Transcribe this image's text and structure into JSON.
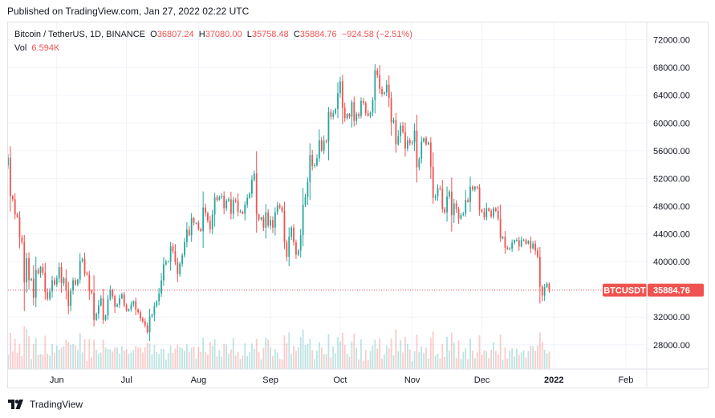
{
  "header": {
    "published": "Published on TradingView.com, Jan 27, 2022 02:22 UTC"
  },
  "legend": {
    "symbol": "Bitcoin / TetherUS, 1D, BINANCE",
    "open_label": "O",
    "open": "36807.24",
    "high_label": "H",
    "high": "37080.00",
    "low_label": "L",
    "low": "35758.48",
    "close_label": "C",
    "close": "35884.76",
    "change": "−924.58 (−2.51%)",
    "vol_label": "Vol",
    "vol": "6.594K"
  },
  "branding": {
    "name": "TradingView"
  },
  "colors": {
    "up": "#26a69a",
    "down": "#ef5350",
    "grid": "#f0f3fa",
    "border": "#e0e3eb"
  },
  "chart_data": {
    "type": "candlestick",
    "symbol": "BTCUSDT",
    "interval": "1D",
    "last_price": 35884.76,
    "last_price_label": "35884.76",
    "symbol_tag": "BTCUSDT",
    "ylim": [
      24500,
      74500
    ],
    "y_ticks": [
      28000,
      32000,
      36000,
      40000,
      44000,
      48000,
      52000,
      56000,
      60000,
      64000,
      68000,
      72000
    ],
    "y_tick_labels": [
      "28000.00",
      "32000.00",
      "36000.00",
      "40000.00",
      "44000.00",
      "48000.00",
      "52000.00",
      "56000.00",
      "60000.00",
      "64000.00",
      "68000.00",
      "72000.00"
    ],
    "x_range": [
      "2021-05-11",
      "2022-02-10"
    ],
    "x_ticks": [
      {
        "date": "2021-06-01",
        "label": "Jun"
      },
      {
        "date": "2021-07-01",
        "label": "Jul"
      },
      {
        "date": "2021-08-01",
        "label": "Aug"
      },
      {
        "date": "2021-09-01",
        "label": "Sep"
      },
      {
        "date": "2021-10-01",
        "label": "Oct"
      },
      {
        "date": "2021-11-01",
        "label": "Nov"
      },
      {
        "date": "2021-12-01",
        "label": "Dec"
      },
      {
        "date": "2022-01-01",
        "label": "2022",
        "bold": true
      },
      {
        "date": "2022-02-01",
        "label": "Feb"
      }
    ],
    "start_date": "2021-05-11",
    "closes": [
      55000,
      49500,
      49000,
      46800,
      46400,
      43500,
      42800,
      37000,
      40500,
      37300,
      37500,
      34800,
      38800,
      38300,
      39200,
      38400,
      35600,
      34600,
      35700,
      37300,
      36700,
      37600,
      39200,
      36900,
      37600,
      35800,
      33600,
      35800,
      37300,
      36700,
      37400,
      40100,
      40400,
      38300,
      38100,
      35800,
      35500,
      31600,
      32500,
      33700,
      34700,
      31600,
      32200,
      34600,
      35900,
      35000,
      33500,
      33800,
      34700,
      35300,
      33700,
      32900,
      33100,
      33800,
      34300,
      33100,
      32700,
      31800,
      31400,
      30800,
      29800,
      32100,
      32300,
      33600,
      34300,
      35400,
      37300,
      39600,
      40000,
      40000,
      42200,
      41500,
      39900,
      38200,
      39700,
      40900,
      42800,
      44600,
      43800,
      46300,
      45600,
      45600,
      44700,
      44400,
      47800,
      47000,
      45900,
      44700,
      46800,
      49300,
      48900,
      49300,
      49500,
      47700,
      48800,
      49000,
      46900,
      48900,
      48800,
      47200,
      47200,
      46900,
      48200,
      49200,
      49800,
      51800,
      52700,
      46800,
      46100,
      46400,
      44900,
      47100,
      45200,
      46000,
      44900,
      47100,
      48100,
      47800,
      47300,
      42800,
      40700,
      43600,
      44900,
      42800,
      41000,
      41600,
      43800,
      48200,
      49300,
      51500,
      55400,
      53800,
      53900,
      54900,
      57500,
      56000,
      57400,
      57300,
      61600,
      60900,
      61400,
      62000,
      64300,
      66000,
      62200,
      60700,
      61300,
      60900,
      63000,
      60300,
      61300,
      61000,
      63200,
      62900,
      61400,
      61000,
      61500,
      63300,
      67600,
      66900,
      64900,
      64200,
      64400,
      65500,
      63600,
      60100,
      60400,
      56900,
      58100,
      59600,
      58700,
      56300,
      57500,
      57100,
      57200,
      58900,
      53600,
      54800,
      57300,
      57800,
      56900,
      57200,
      53700,
      49200,
      49400,
      50600,
      50500,
      47600,
      47100,
      49400,
      50100,
      46700,
      48400,
      47600,
      46200,
      46700,
      46900,
      48900,
      48600,
      50800,
      50400,
      50800,
      50700,
      47500,
      47200,
      46400,
      47700,
      47300,
      46500,
      47700,
      47300,
      46200,
      43400,
      43600,
      42000,
      41800,
      41900,
      42700,
      43100,
      43100,
      42200,
      43100,
      43100,
      42600,
      43000,
      41900,
      42600,
      41600,
      40700,
      36400,
      35100,
      36300,
      36800,
      35900
    ],
    "y_axis_label": "",
    "x_axis_label": "",
    "title": "Bitcoin / TetherUS, 1D, BINANCE",
    "grid": true,
    "volume_visible": true
  }
}
